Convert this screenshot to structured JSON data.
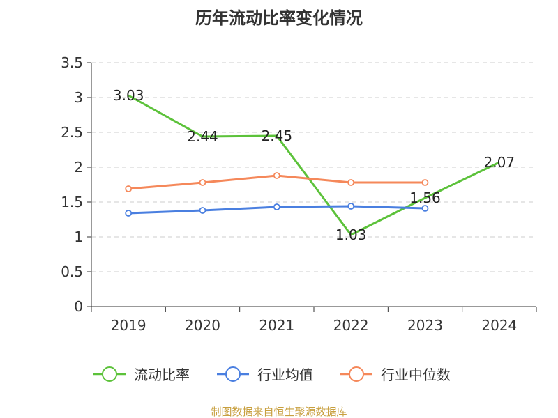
{
  "chart_data": {
    "type": "line",
    "title": "历年流动比率变化情况",
    "categories": [
      "2019",
      "2020",
      "2021",
      "2022",
      "2023",
      "2024"
    ],
    "ylim": [
      0,
      3.5
    ],
    "yticks": [
      "0",
      "0.5",
      "1",
      "1.5",
      "2",
      "2.5",
      "3",
      "3.5"
    ],
    "series": [
      {
        "name": "流动比率",
        "color": "#5cc23a",
        "values": [
          3.03,
          2.44,
          2.45,
          1.03,
          1.56,
          2.07
        ],
        "labels": [
          "3.03",
          "2.44",
          "2.45",
          "1.03",
          "1.56",
          "2.07"
        ],
        "markers": false
      },
      {
        "name": "行业均值",
        "color": "#4a7fe0",
        "values": [
          1.34,
          1.38,
          1.43,
          1.44,
          1.41,
          null
        ],
        "markers": true
      },
      {
        "name": "行业中位数",
        "color": "#f5885a",
        "values": [
          1.69,
          1.78,
          1.88,
          1.78,
          1.78,
          null
        ],
        "markers": true
      }
    ],
    "legend_position": "bottom",
    "source": "制图数据来自恒生聚源数据库"
  }
}
